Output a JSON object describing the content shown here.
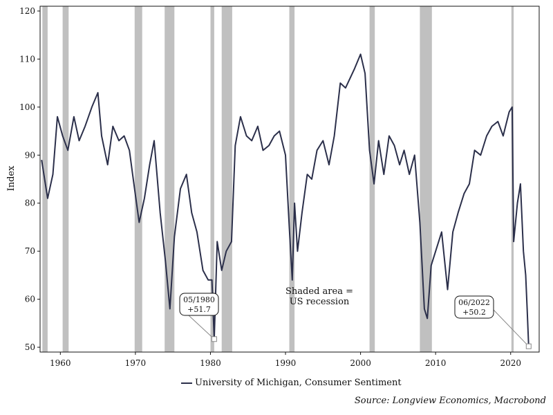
{
  "chart_data": {
    "type": "line",
    "ylabel": "Index",
    "xlim": [
      1957.3,
      2023.8
    ],
    "ylim": [
      49,
      121
    ],
    "y_ticks": [
      50,
      60,
      70,
      80,
      90,
      100,
      110,
      120
    ],
    "x_ticks": [
      1960,
      1970,
      1980,
      1990,
      2000,
      2010,
      2020
    ],
    "grid": false,
    "legend_position": "bottom",
    "colors": {
      "line": "#2b2f4a",
      "recession": "#c0c0c0"
    },
    "recessions": [
      [
        1957.6,
        1958.3
      ],
      [
        1960.3,
        1961.1
      ],
      [
        1969.9,
        1970.9
      ],
      [
        1973.9,
        1975.2
      ],
      [
        1980.0,
        1980.5
      ],
      [
        1981.5,
        1982.9
      ],
      [
        1990.5,
        1991.2
      ],
      [
        2001.2,
        2001.9
      ],
      [
        2007.9,
        2009.5
      ],
      [
        2020.1,
        2020.4
      ]
    ],
    "series": [
      {
        "name": "University of Michigan, Consumer Sentiment",
        "x": [
          1957.5,
          1958.3,
          1959.0,
          1959.6,
          1960.3,
          1961.0,
          1961.8,
          1962.5,
          1963.3,
          1964.2,
          1965.0,
          1965.5,
          1966.3,
          1967.0,
          1967.8,
          1968.5,
          1969.2,
          1969.8,
          1970.5,
          1971.2,
          1971.9,
          1972.5,
          1973.3,
          1974.0,
          1974.6,
          1975.2,
          1976.0,
          1976.8,
          1977.5,
          1978.2,
          1979.0,
          1979.7,
          1980.2,
          1980.5,
          1980.9,
          1981.5,
          1982.1,
          1982.8,
          1983.3,
          1984.0,
          1984.8,
          1985.5,
          1986.3,
          1987.0,
          1987.8,
          1988.5,
          1989.2,
          1990.0,
          1990.5,
          1990.9,
          1991.2,
          1991.6,
          1992.2,
          1992.9,
          1993.5,
          1994.2,
          1995.0,
          1995.8,
          1996.5,
          1997.3,
          1998.0,
          1998.6,
          1999.2,
          2000.0,
          2000.6,
          2001.2,
          2001.8,
          2002.4,
          2003.1,
          2003.8,
          2004.5,
          2005.2,
          2005.8,
          2006.5,
          2007.2,
          2007.9,
          2008.5,
          2008.9,
          2009.4,
          2010.0,
          2010.8,
          2011.6,
          2012.3,
          2013.0,
          2013.8,
          2014.5,
          2015.2,
          2016.0,
          2016.8,
          2017.5,
          2018.3,
          2019.0,
          2019.8,
          2020.2,
          2020.4,
          2020.9,
          2021.3,
          2021.7,
          2022.0,
          2022.2,
          2022.4
        ],
        "y": [
          89,
          81,
          86,
          98,
          94,
          91,
          98,
          93,
          96,
          100,
          103,
          94,
          88,
          96,
          93,
          94,
          91,
          84,
          76,
          81,
          88,
          93,
          78,
          68,
          58,
          73,
          83,
          86,
          78,
          74,
          66,
          64,
          64,
          51.7,
          72,
          66,
          70,
          72,
          92,
          98,
          94,
          93,
          96,
          91,
          92,
          94,
          95,
          90,
          75,
          64,
          80,
          70,
          78,
          86,
          85,
          91,
          93,
          88,
          94,
          105,
          104,
          106,
          108,
          111,
          107,
          91,
          84,
          93,
          86,
          94,
          92,
          88,
          91,
          86,
          90,
          76,
          58,
          56,
          67,
          70,
          74,
          62,
          74,
          78,
          82,
          84,
          91,
          90,
          94,
          96,
          97,
          94,
          99,
          100,
          72,
          80,
          84,
          70,
          65,
          58,
          50.2
        ]
      }
    ],
    "annotations": [
      {
        "label_line1": "05/1980",
        "label_line2": "+51.7",
        "x": 1980.5,
        "y": 51.7
      },
      {
        "label_line1": "06/2022",
        "label_line2": "+50.2",
        "x": 2022.4,
        "y": 50.2
      }
    ],
    "note_line1": "Shaded area =",
    "note_line2": "US recession",
    "source": "Source: Longview Economics, Macrobond"
  }
}
